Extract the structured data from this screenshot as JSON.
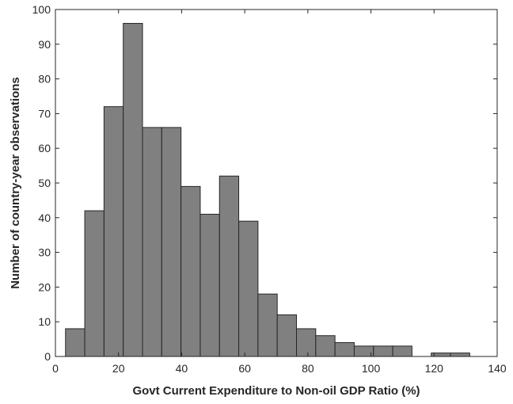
{
  "chart_data": {
    "type": "bar",
    "subtype": "histogram",
    "title": "",
    "xlabel": "Govt Current Expenditure to Non-oil GDP Ratio (%)",
    "ylabel": "Number of country-year observations",
    "xlim": [
      0,
      140
    ],
    "ylim": [
      0,
      100
    ],
    "xticks": [
      0,
      20,
      40,
      60,
      80,
      100,
      120,
      140
    ],
    "yticks": [
      0,
      10,
      20,
      30,
      40,
      50,
      60,
      70,
      80,
      90,
      100
    ],
    "grid": false,
    "bar_color": "#808080",
    "edge_color": "#262626",
    "bins": [
      {
        "x0": 3.2,
        "x1": 9.3,
        "count": 8
      },
      {
        "x0": 9.3,
        "x1": 15.4,
        "count": 42
      },
      {
        "x0": 15.4,
        "x1": 21.5,
        "count": 72
      },
      {
        "x0": 21.5,
        "x1": 27.6,
        "count": 96
      },
      {
        "x0": 27.6,
        "x1": 33.7,
        "count": 66
      },
      {
        "x0": 33.7,
        "x1": 39.8,
        "count": 66
      },
      {
        "x0": 39.8,
        "x1": 45.9,
        "count": 49
      },
      {
        "x0": 45.9,
        "x1": 52.0,
        "count": 41
      },
      {
        "x0": 52.0,
        "x1": 58.1,
        "count": 52
      },
      {
        "x0": 58.1,
        "x1": 64.2,
        "count": 39
      },
      {
        "x0": 64.2,
        "x1": 70.3,
        "count": 18
      },
      {
        "x0": 70.3,
        "x1": 76.4,
        "count": 12
      },
      {
        "x0": 76.4,
        "x1": 82.5,
        "count": 8
      },
      {
        "x0": 82.5,
        "x1": 88.6,
        "count": 6
      },
      {
        "x0": 88.6,
        "x1": 94.7,
        "count": 4
      },
      {
        "x0": 94.7,
        "x1": 100.8,
        "count": 3
      },
      {
        "x0": 100.8,
        "x1": 106.9,
        "count": 3
      },
      {
        "x0": 106.9,
        "x1": 113.0,
        "count": 3
      },
      {
        "x0": 113.0,
        "x1": 119.1,
        "count": 0
      },
      {
        "x0": 119.1,
        "x1": 125.2,
        "count": 1
      },
      {
        "x0": 125.2,
        "x1": 131.3,
        "count": 1
      }
    ]
  }
}
